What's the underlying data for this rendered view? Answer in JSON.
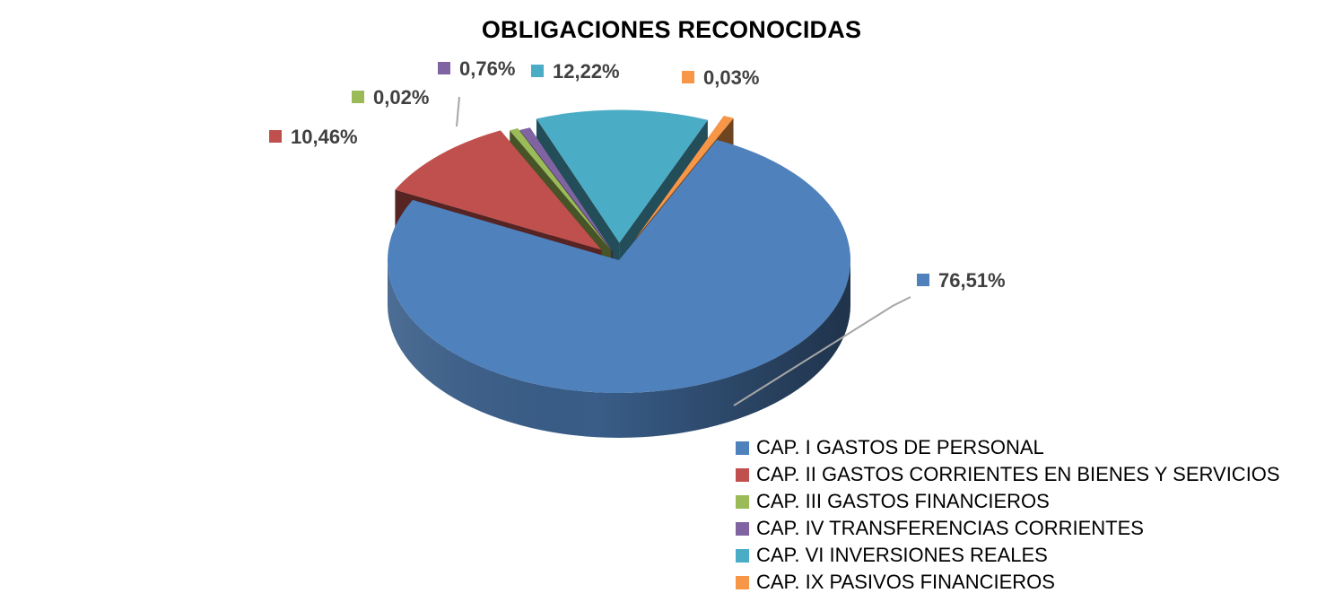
{
  "chart_data": {
    "type": "pie",
    "title": "OBLIGACIONES RECONOCIDAS",
    "categories": [
      "CAP. I GASTOS DE PERSONAL",
      "CAP. II GASTOS CORRIENTES EN BIENES Y SERVICIOS",
      "CAP. III GASTOS FINANCIEROS",
      "CAP. IV TRANSFERENCIAS CORRIENTES",
      "CAP. VI INVERSIONES REALES",
      "CAP. IX PASIVOS FINANCIEROS"
    ],
    "values": [
      76.51,
      10.46,
      0.02,
      0.76,
      12.22,
      0.03
    ],
    "data_labels": [
      "76,51%",
      "10,46%",
      "0,02%",
      "0,76%",
      "12,22%",
      "0,03%"
    ],
    "colors": [
      "#4F81BD",
      "#C0504D",
      "#9BBB59",
      "#8064A2",
      "#4BACC6",
      "#F79646"
    ],
    "legend_placement": "bottom-right",
    "three_d": true
  }
}
